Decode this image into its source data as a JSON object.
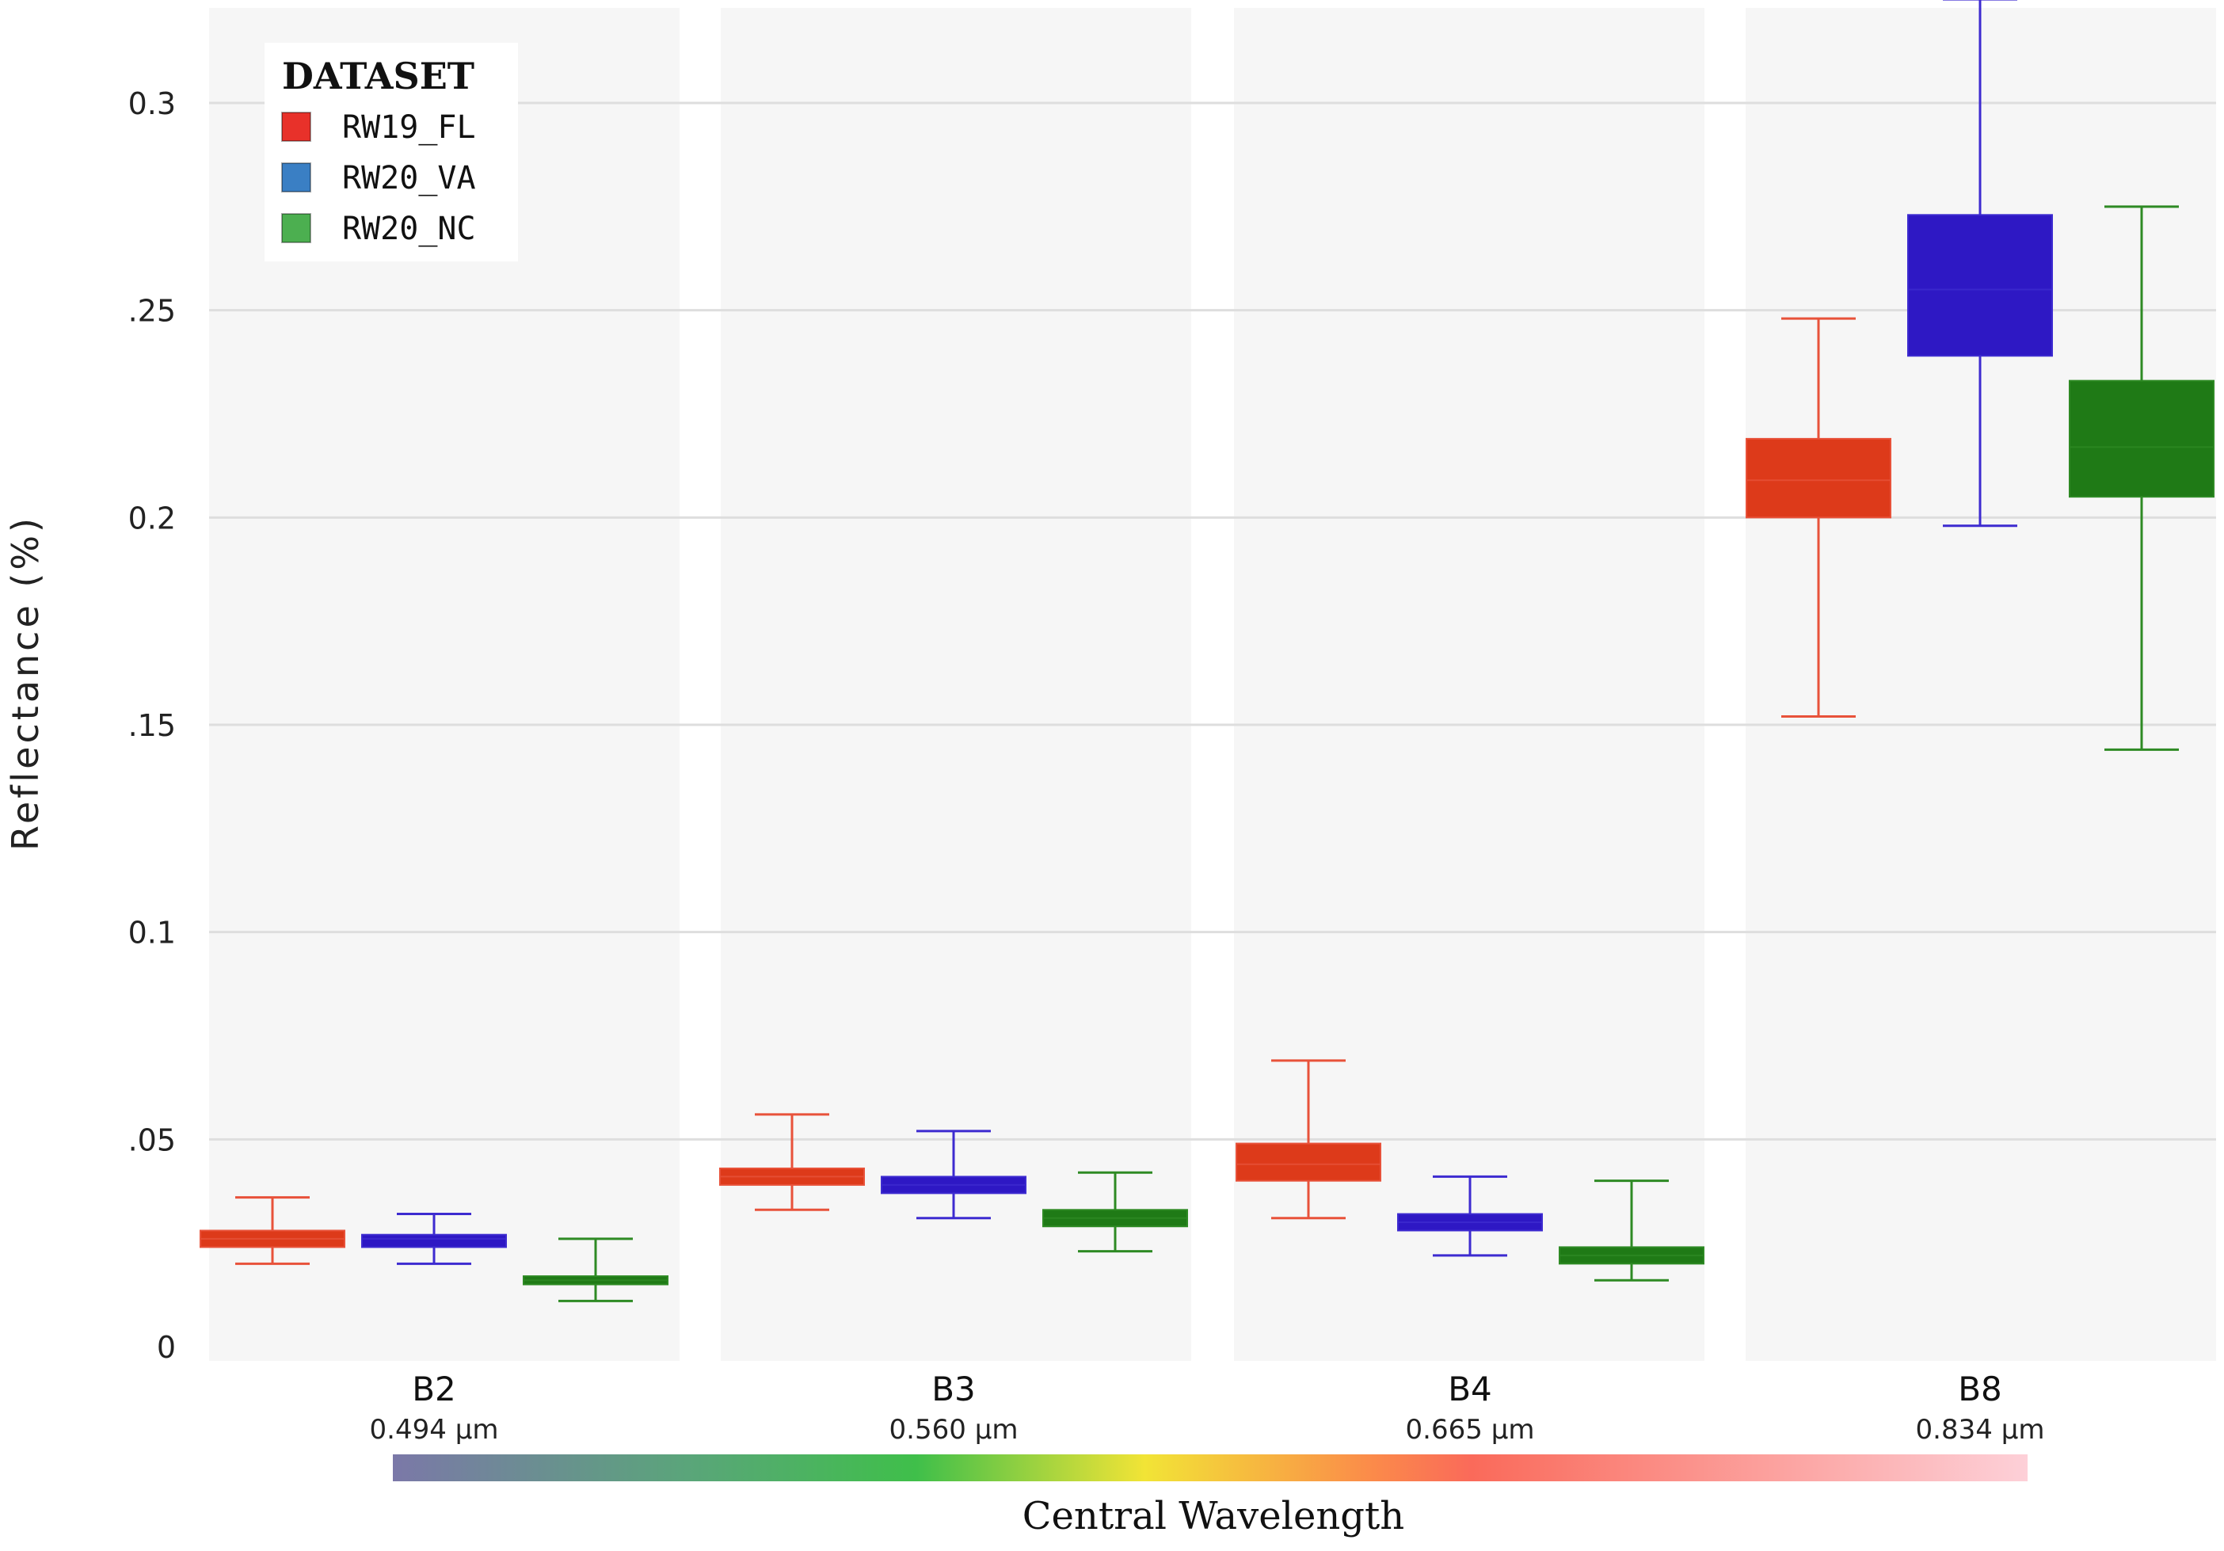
{
  "chart_data": {
    "type": "box",
    "title": "",
    "xlabel": "Central Wavelength",
    "ylabel": "Reflectance (%)",
    "ylim": [
      0,
      0.33
    ],
    "y_ticks": [
      {
        "value": 0,
        "label": "0"
      },
      {
        "value": 0.05,
        "label": ".05"
      },
      {
        "value": 0.1,
        "label": "0.1"
      },
      {
        "value": 0.15,
        "label": ".15"
      },
      {
        "value": 0.2,
        "label": "0.2"
      },
      {
        "value": 0.25,
        "label": ".25"
      },
      {
        "value": 0.3,
        "label": "0.3"
      }
    ],
    "grid": true,
    "legend": {
      "title": "DATASET",
      "position": "top-left",
      "entries": [
        {
          "name": "RW19_FL",
          "color": "#e8312a"
        },
        {
          "name": "RW20_VA",
          "color": "#3a7fc4"
        },
        {
          "name": "RW20_NC",
          "color": "#4caf50"
        }
      ]
    },
    "colorbar_label": "Central Wavelength",
    "categories": [
      {
        "band": "B2",
        "wavelength": "0.494 µm"
      },
      {
        "band": "B3",
        "wavelength": "0.560 µm"
      },
      {
        "band": "B4",
        "wavelength": "0.665 µm"
      },
      {
        "band": "B8",
        "wavelength": "0.834 µm"
      }
    ],
    "series": [
      {
        "name": "RW19_FL",
        "fill": "#dd3a1a",
        "stroke": "#e8523a",
        "boxes": [
          {
            "min": 0.02,
            "q1": 0.024,
            "median": 0.026,
            "q3": 0.028,
            "max": 0.036
          },
          {
            "min": 0.033,
            "q1": 0.039,
            "median": 0.041,
            "q3": 0.043,
            "max": 0.056
          },
          {
            "min": 0.031,
            "q1": 0.04,
            "median": 0.044,
            "q3": 0.049,
            "max": 0.069
          },
          {
            "min": 0.152,
            "q1": 0.2,
            "median": 0.209,
            "q3": 0.219,
            "max": 0.248
          }
        ]
      },
      {
        "name": "RW20_VA",
        "fill": "#2e18c4",
        "stroke": "#3d2bd0",
        "boxes": [
          {
            "min": 0.02,
            "q1": 0.024,
            "median": 0.026,
            "q3": 0.027,
            "max": 0.032
          },
          {
            "min": 0.031,
            "q1": 0.037,
            "median": 0.039,
            "q3": 0.041,
            "max": 0.052
          },
          {
            "min": 0.022,
            "q1": 0.028,
            "median": 0.03,
            "q3": 0.032,
            "max": 0.041
          },
          {
            "min": 0.198,
            "q1": 0.239,
            "median": 0.255,
            "q3": 0.273,
            "max": 0.325
          }
        ]
      },
      {
        "name": "RW20_NC",
        "fill": "#1f7a16",
        "stroke": "#2e8a24",
        "boxes": [
          {
            "min": 0.011,
            "q1": 0.015,
            "median": 0.016,
            "q3": 0.017,
            "max": 0.026
          },
          {
            "min": 0.023,
            "q1": 0.029,
            "median": 0.031,
            "q3": 0.033,
            "max": 0.042
          },
          {
            "min": 0.016,
            "q1": 0.02,
            "median": 0.022,
            "q3": 0.024,
            "max": 0.04
          },
          {
            "min": 0.144,
            "q1": 0.205,
            "median": 0.217,
            "q3": 0.233,
            "max": 0.275
          }
        ]
      }
    ]
  }
}
